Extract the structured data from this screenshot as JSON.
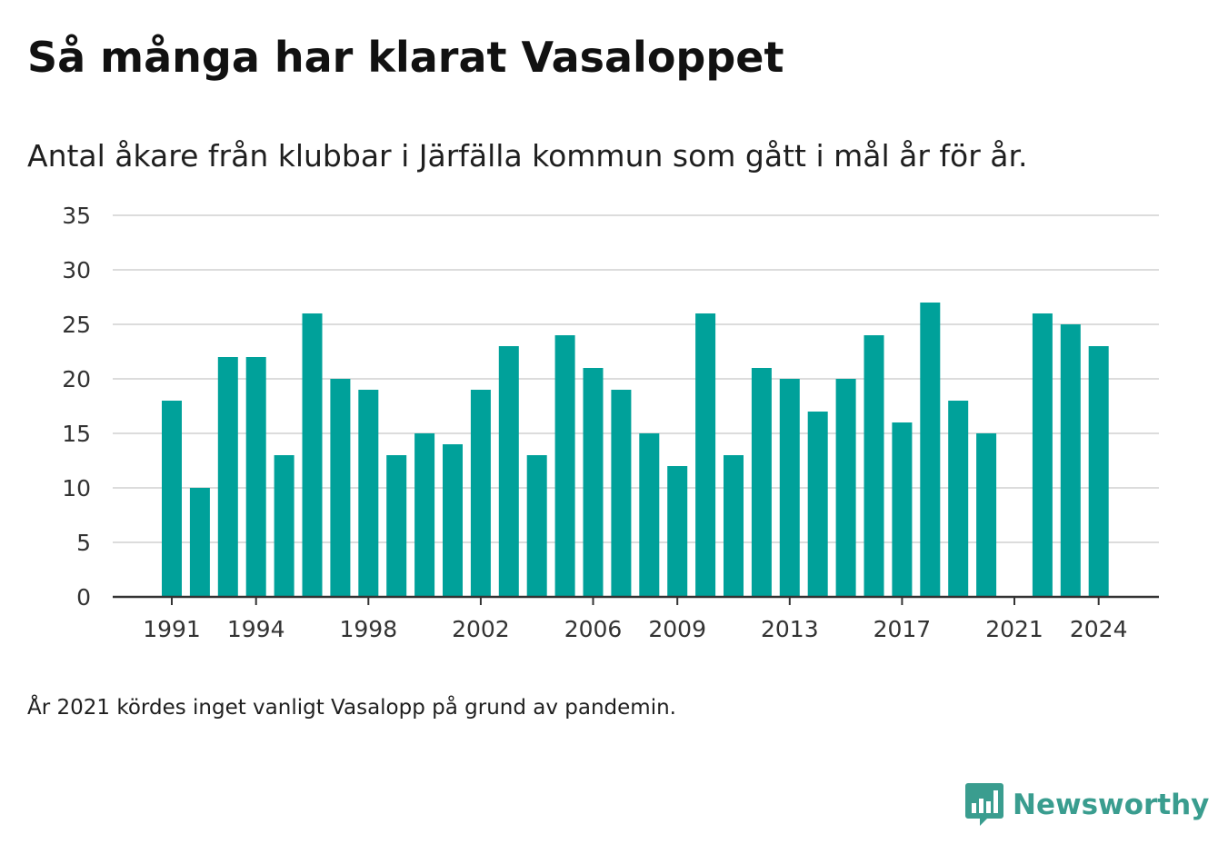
{
  "title": "Så många har klarat Vasaloppet",
  "subtitle": "Antal åkare från klubbar i Järfälla kommun som gått i mål år för år.",
  "note": "År 2021 kördes inget vanligt Vasalopp på grund av pandemin.",
  "brand": {
    "name": "Newsworthy",
    "color": "#3a9d8f",
    "icon": "bar-chart-speech-bubble-icon"
  },
  "colors": {
    "bar": "#00a19a",
    "grid": "#dcdcdc",
    "axis": "#333333",
    "text": "#333333"
  },
  "chart_data": {
    "type": "bar",
    "title": "Så många har klarat Vasaloppet",
    "subtitle": "Antal åkare från klubbar i Järfälla kommun som gått i mål år för år.",
    "xlabel": "",
    "ylabel": "",
    "ylim": [
      0,
      35
    ],
    "yticks": [
      0,
      5,
      10,
      15,
      20,
      25,
      30,
      35
    ],
    "xtick_labels": [
      "1991",
      "1994",
      "1998",
      "2002",
      "2006",
      "2009",
      "2013",
      "2017",
      "2021",
      "2024"
    ],
    "grid": true,
    "legend": "none",
    "categories": [
      1991,
      1992,
      1993,
      1994,
      1995,
      1996,
      1997,
      1998,
      1999,
      2000,
      2001,
      2002,
      2003,
      2004,
      2005,
      2006,
      2007,
      2008,
      2009,
      2010,
      2011,
      2012,
      2013,
      2014,
      2015,
      2016,
      2017,
      2018,
      2019,
      2020,
      2021,
      2022,
      2023,
      2024
    ],
    "values": [
      18,
      10,
      22,
      22,
      13,
      26,
      20,
      19,
      13,
      15,
      14,
      19,
      23,
      13,
      24,
      21,
      19,
      15,
      12,
      26,
      13,
      21,
      20,
      17,
      20,
      24,
      16,
      27,
      18,
      15,
      null,
      26,
      25,
      23
    ]
  }
}
